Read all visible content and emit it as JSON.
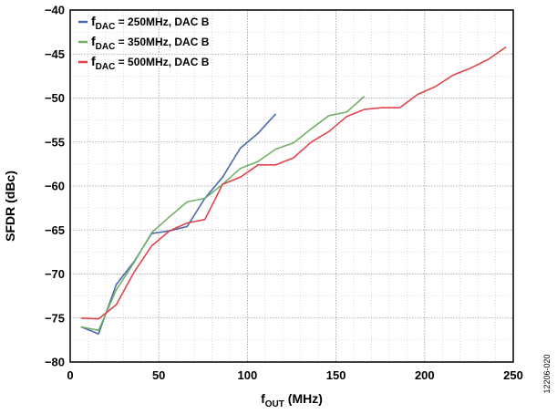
{
  "chart_data": {
    "type": "line",
    "xlabel": {
      "main": "f",
      "sub": "OUT",
      "rest": " (MHz)"
    },
    "ylabel": "SFDR (dBc)",
    "xlim": [
      0,
      250
    ],
    "ylim": [
      -80,
      -40
    ],
    "xticks": [
      0,
      50,
      100,
      150,
      200,
      250
    ],
    "yticks": [
      -40,
      -45,
      -50,
      -55,
      -60,
      -65,
      -70,
      -75,
      -80
    ],
    "xtick_labels": [
      "0",
      "50",
      "100",
      "150",
      "200",
      "250"
    ],
    "ytick_labels": [
      "−40",
      "−45",
      "−50",
      "−55",
      "−60",
      "−65",
      "−70",
      "−75",
      "−80"
    ],
    "grid": true,
    "legend_position": "top-left",
    "series": [
      {
        "name": "f_DAC = 250MHz, DAC B",
        "legend": {
          "main": "f",
          "sub": "DAC",
          "rest": " = 250MHz, DAC B"
        },
        "color": "#4a6aa8",
        "x": [
          6,
          16,
          26,
          36,
          46,
          56,
          66,
          76,
          86,
          96,
          106,
          116
        ],
        "y": [
          -76.0,
          -76.8,
          -71.2,
          -68.6,
          -65.4,
          -65.1,
          -64.6,
          -61.4,
          -59.0,
          -55.7,
          -54.0,
          -51.8
        ]
      },
      {
        "name": "f_DAC = 350MHz, DAC B",
        "legend": {
          "main": "f",
          "sub": "DAC",
          "rest": " = 350MHz, DAC B"
        },
        "color": "#72b066",
        "x": [
          6,
          16,
          26,
          36,
          46,
          56,
          66,
          76,
          86,
          96,
          106,
          116,
          126,
          136,
          146,
          156,
          166
        ],
        "y": [
          -76.0,
          -76.4,
          -71.8,
          -68.7,
          -65.3,
          -63.5,
          -61.8,
          -61.4,
          -59.8,
          -58.0,
          -57.2,
          -55.8,
          -55.1,
          -53.5,
          -52.0,
          -51.6,
          -49.8
        ]
      },
      {
        "name": "f_DAC = 500MHz, DAC B",
        "legend": {
          "main": "f",
          "sub": "DAC",
          "rest": " = 500MHz, DAC B"
        },
        "color": "#e0454e",
        "x": [
          6,
          16,
          26,
          36,
          46,
          56,
          66,
          76,
          86,
          96,
          106,
          116,
          126,
          136,
          146,
          156,
          166,
          176,
          186,
          196,
          206,
          216,
          226,
          236,
          246
        ],
        "y": [
          -75.0,
          -75.1,
          -73.5,
          -69.8,
          -66.8,
          -65.1,
          -64.2,
          -63.8,
          -59.8,
          -59.0,
          -57.6,
          -57.6,
          -56.8,
          -55.0,
          -53.8,
          -52.1,
          -51.3,
          -51.1,
          -51.1,
          -49.6,
          -48.7,
          -47.4,
          -46.6,
          -45.6,
          -44.2
        ]
      }
    ]
  },
  "figure_id": "12206-020"
}
